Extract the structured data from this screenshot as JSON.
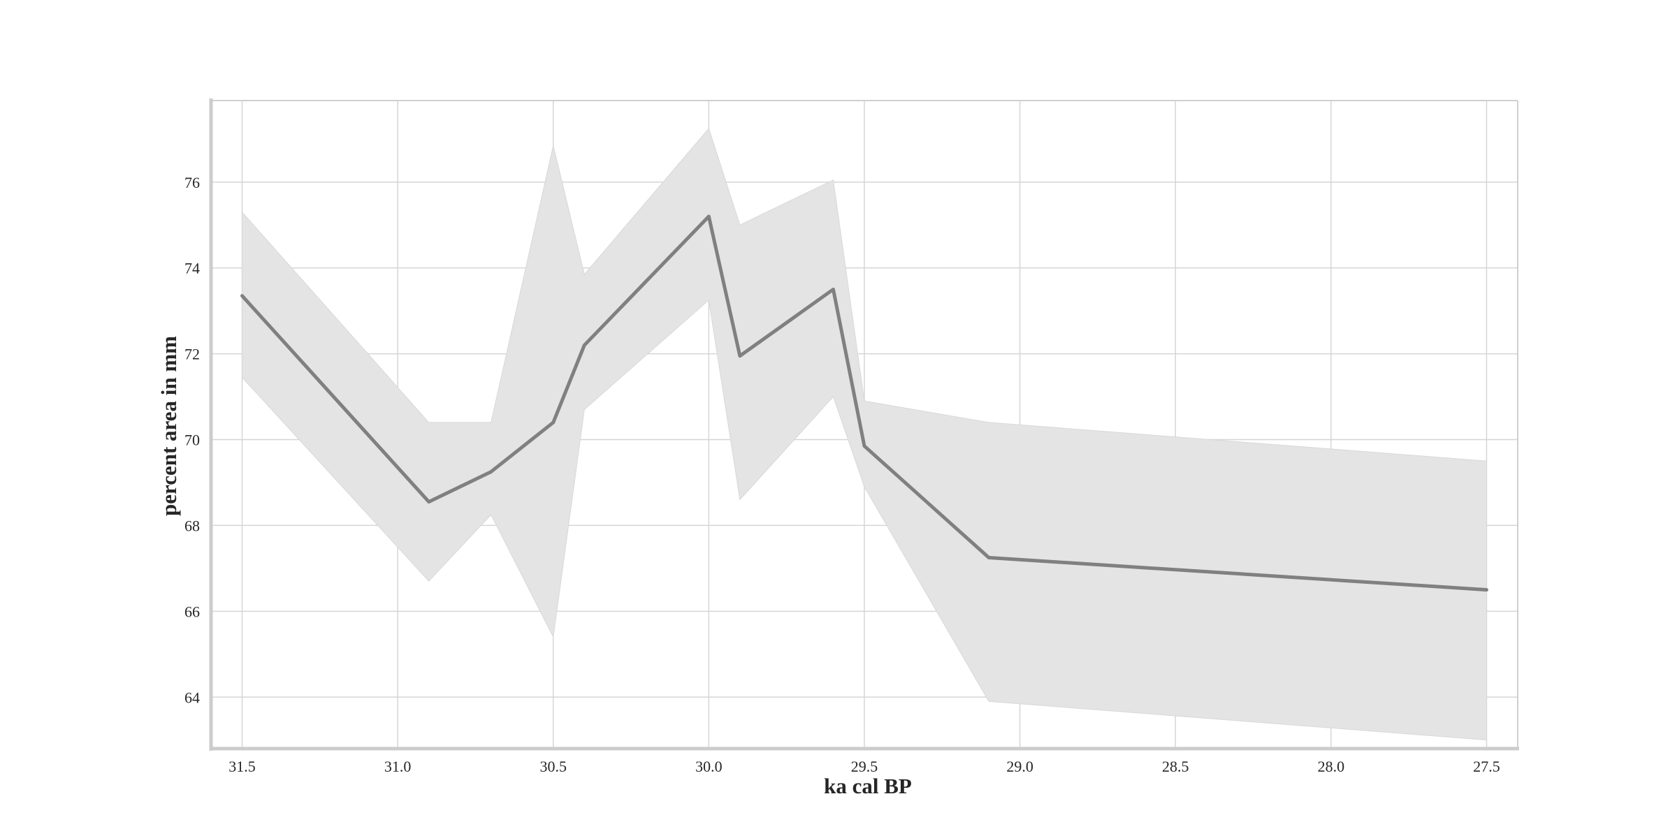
{
  "chart_data": {
    "type": "line",
    "title": "",
    "xlabel": "ka cal BP",
    "ylabel": "percent area in mm",
    "x_reversed": true,
    "xlim": [
      31.6,
      27.4
    ],
    "ylim": [
      62.8,
      77.9
    ],
    "x_ticks": [
      31.5,
      31.0,
      30.5,
      30.0,
      29.5,
      29.0,
      28.5,
      28.0,
      27.5
    ],
    "x_tick_labels": [
      "31.5",
      "31.0",
      "30.5",
      "30.0",
      "29.5",
      "29.0",
      "28.5",
      "28.0",
      "27.5"
    ],
    "y_ticks": [
      64,
      66,
      68,
      70,
      72,
      74,
      76
    ],
    "y_tick_labels": [
      "64",
      "66",
      "68",
      "70",
      "72",
      "74",
      "76"
    ],
    "grid": true,
    "legend": "none",
    "series": [
      {
        "x": [
          31.5,
          30.9,
          30.7,
          30.5,
          30.4,
          30.0,
          29.9,
          29.6,
          29.5,
          29.1,
          27.5
        ],
        "y": [
          73.35,
          68.55,
          69.25,
          70.4,
          72.2,
          75.2,
          71.95,
          73.5,
          69.85,
          67.25,
          66.5
        ],
        "upper": [
          75.3,
          70.4,
          70.4,
          76.85,
          73.85,
          77.25,
          75.0,
          76.05,
          70.9,
          70.4,
          69.5
        ],
        "lower": [
          71.45,
          66.7,
          68.25,
          65.4,
          70.7,
          73.25,
          68.6,
          71.0,
          68.9,
          63.9,
          63.0
        ],
        "color": "#808080",
        "band_color": "#e4e4e4"
      }
    ]
  }
}
